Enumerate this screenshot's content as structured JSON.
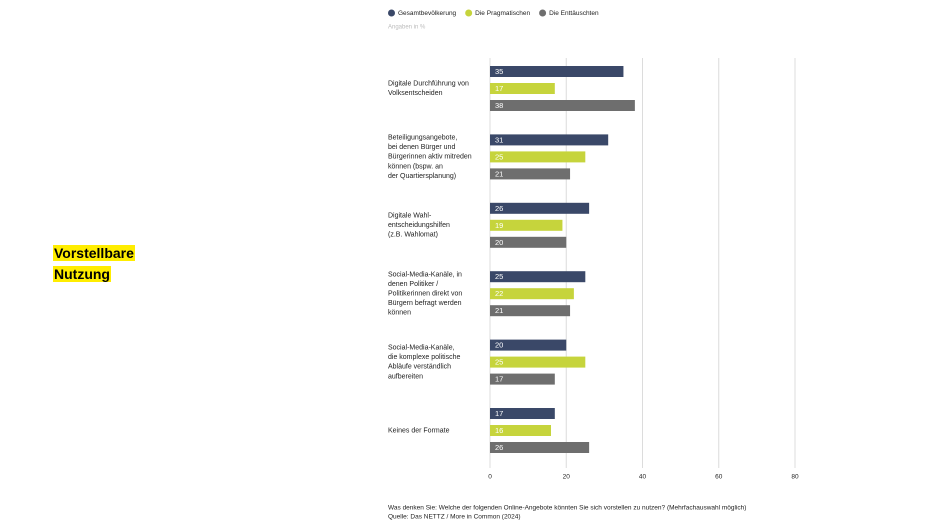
{
  "heading": [
    "Vorstellbare",
    "Nutzung"
  ],
  "chart_data": {
    "type": "hbar",
    "subtitle": "Angaben in %",
    "categories": [
      [
        "Digitale Durchführung von",
        "Volksentscheiden"
      ],
      [
        "Beteiligungsangebote,",
        "bei denen Bürger und",
        "Bürgerinnen aktiv mitreden",
        "können (bspw. an",
        "der Quartiersplanung)"
      ],
      [
        "Digitale Wahl-",
        "entscheidungshilfen",
        "(z.B. Wahlomat)"
      ],
      [
        "Social-Media-Kanäle, in",
        "denen Politiker /",
        "Politikerinnen direkt von",
        "Bürgern befragt werden",
        "können"
      ],
      [
        "Social-Media-Kanäle,",
        "die komplexe politische",
        "Abläufe verständlich",
        "aufbereiten"
      ],
      [
        "Keines der Formate"
      ]
    ],
    "series": [
      {
        "name": "Gesamtbevölkerung",
        "color": "#3a4868",
        "values": [
          35,
          31,
          26,
          25,
          20,
          17
        ]
      },
      {
        "name": "Die Pragmatischen",
        "color": "#c6d43c",
        "values": [
          17,
          25,
          19,
          22,
          25,
          16
        ]
      },
      {
        "name": "Die Enttäuschten",
        "color": "#6e6e6e",
        "values": [
          38,
          21,
          20,
          21,
          17,
          26
        ]
      }
    ],
    "xlim": [
      0,
      80
    ],
    "xticks": [
      0,
      20,
      40,
      60,
      80
    ],
    "grid": true,
    "note": "Was denken Sie: Welche der folgenden Online-Angebote könnten Sie sich vorstellen zu nutzen? (Mehrfachauswahl möglich)",
    "source": "Quelle: Das NETTZ / More in Common (2024)"
  }
}
